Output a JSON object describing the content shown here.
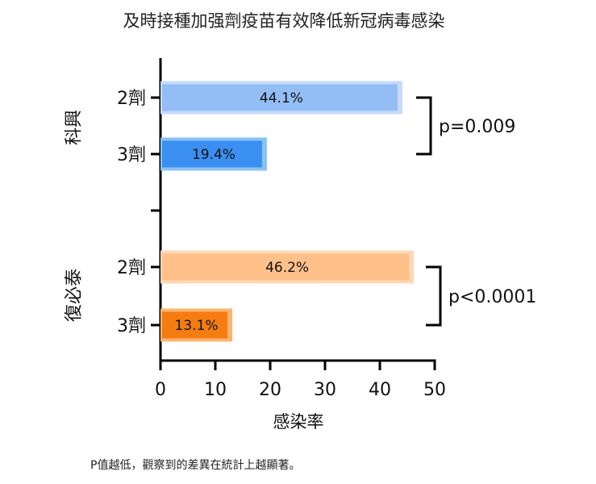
{
  "chart_data": {
    "type": "bar",
    "title": "及時接種加强劑疫苗有效降低新冠病毒感染",
    "xlabel": "感染率",
    "xlim": [
      0,
      50
    ],
    "xticks": [
      0,
      10,
      20,
      30,
      40,
      50
    ],
    "groups": [
      {
        "name": "科興",
        "bars": [
          {
            "label": "2劑",
            "value": 44.1,
            "value_label": "44.1%",
            "color": "#93bdf5",
            "border": "#c6dbfb"
          },
          {
            "label": "3劑",
            "value": 19.4,
            "value_label": "19.4%",
            "color": "#3b8ff0",
            "border": "#86c2f7"
          }
        ],
        "comparison": "p=0.009"
      },
      {
        "name": "復必泰",
        "bars": [
          {
            "label": "2劑",
            "value": 46.2,
            "value_label": "46.2%",
            "color": "#ffc08a",
            "border": "#ffd8b6"
          },
          {
            "label": "3劑",
            "value": 13.1,
            "value_label": "13.1%",
            "color": "#f57c10",
            "border": "#fbb46e"
          }
        ],
        "comparison": "p<0.0001"
      }
    ],
    "footnote": "P值越低，觀察到的差異在統計上越顯著。"
  }
}
